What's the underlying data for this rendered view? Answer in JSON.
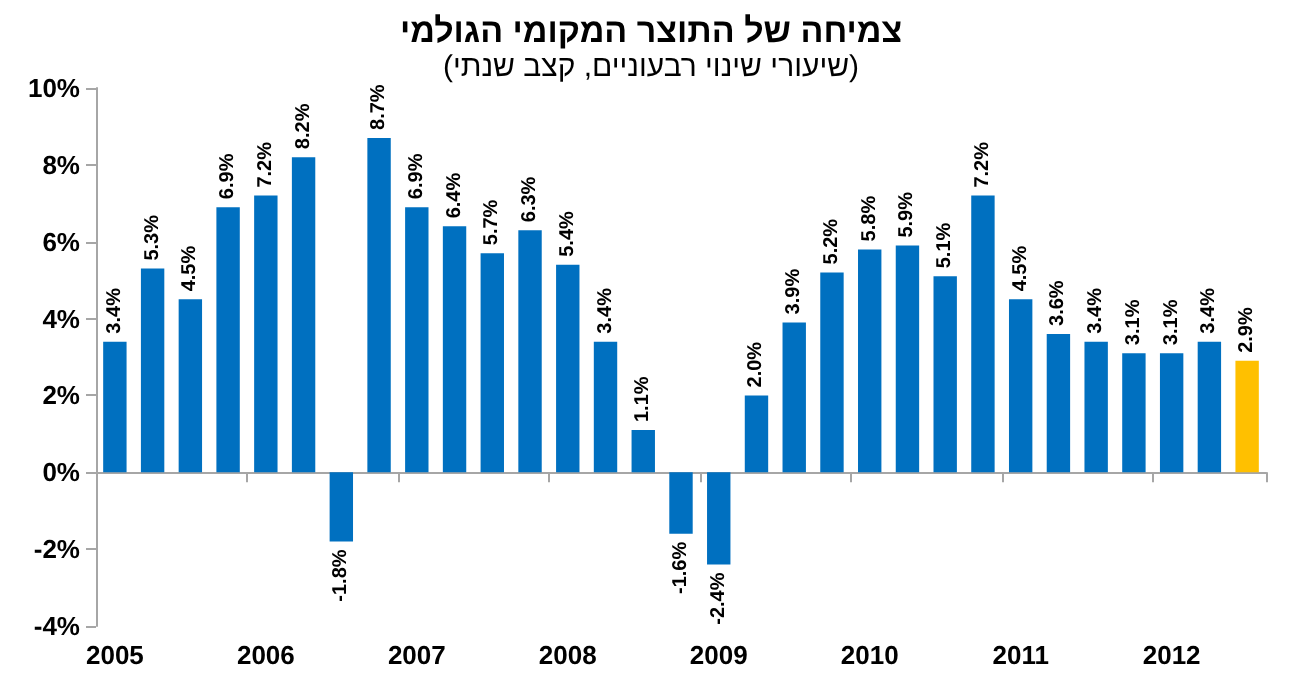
{
  "chart_data": {
    "type": "bar",
    "title": "צמיחה של התוצר המקומי הגולמי",
    "subtitle": "(שיעורי שינוי רבעוניים, קצב שנתי)",
    "categories": [
      "2005",
      null,
      null,
      null,
      "2006",
      null,
      null,
      null,
      "2007",
      null,
      null,
      null,
      "2008",
      null,
      null,
      null,
      "2009",
      null,
      null,
      null,
      "2010",
      null,
      null,
      null,
      "2011",
      null,
      null,
      null,
      "2012",
      null,
      null
    ],
    "values": [
      3.4,
      5.3,
      4.5,
      6.9,
      7.2,
      8.2,
      -1.8,
      8.7,
      6.9,
      6.4,
      5.7,
      6.3,
      5.4,
      3.4,
      1.1,
      -1.6,
      -2.4,
      2.0,
      3.9,
      5.2,
      5.8,
      5.9,
      5.1,
      7.2,
      4.5,
      3.6,
      3.4,
      3.1,
      3.1,
      3.4,
      2.9
    ],
    "value_labels": [
      "3.4%",
      "5.3%",
      "4.5%",
      "6.9%",
      "7.2%",
      "8.2%",
      "-1.8%",
      "8.7%",
      "6.9%",
      "6.4%",
      "5.7%",
      "6.3%",
      "5.4%",
      "3.4%",
      "1.1%",
      "-1.6%",
      "-2.4%",
      "2.0%",
      "3.9%",
      "5.2%",
      "5.8%",
      "5.9%",
      "5.1%",
      "7.2%",
      "4.5%",
      "3.6%",
      "3.4%",
      "3.1%",
      "3.1%",
      "3.4%",
      "2.9%"
    ],
    "colors": [
      "#0070c0",
      "#0070c0",
      "#0070c0",
      "#0070c0",
      "#0070c0",
      "#0070c0",
      "#0070c0",
      "#0070c0",
      "#0070c0",
      "#0070c0",
      "#0070c0",
      "#0070c0",
      "#0070c0",
      "#0070c0",
      "#0070c0",
      "#0070c0",
      "#0070c0",
      "#0070c0",
      "#0070c0",
      "#0070c0",
      "#0070c0",
      "#0070c0",
      "#0070c0",
      "#0070c0",
      "#0070c0",
      "#0070c0",
      "#0070c0",
      "#0070c0",
      "#0070c0",
      "#0070c0",
      "#ffc000"
    ],
    "ylim": [
      -4,
      10
    ],
    "yticks": [
      {
        "value": -4,
        "label": "-4%"
      },
      {
        "value": -2,
        "label": "-2%"
      },
      {
        "value": 0,
        "label": "0%"
      },
      {
        "value": 2,
        "label": "2%"
      },
      {
        "value": 4,
        "label": "4%"
      },
      {
        "value": 6,
        "label": "6%"
      },
      {
        "value": 8,
        "label": "8%"
      },
      {
        "value": 10,
        "label": "10%"
      }
    ]
  }
}
